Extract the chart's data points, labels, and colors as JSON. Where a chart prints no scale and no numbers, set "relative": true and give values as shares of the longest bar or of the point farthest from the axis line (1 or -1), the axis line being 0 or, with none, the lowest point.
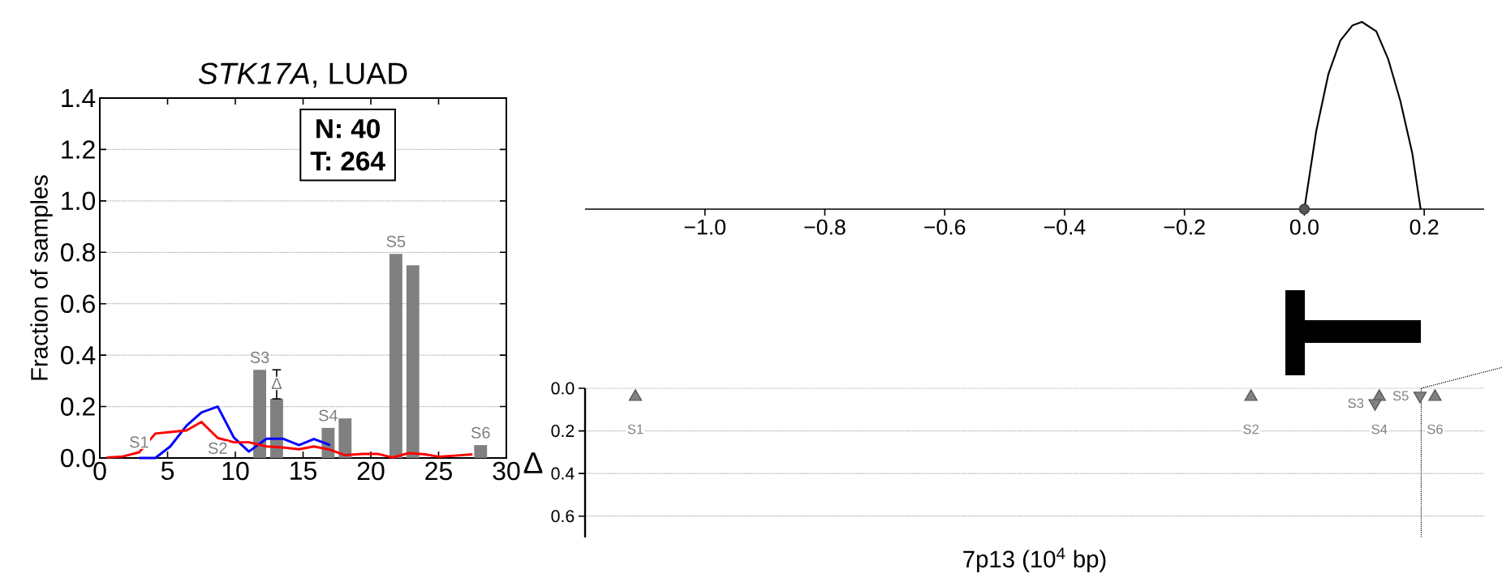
{
  "chart_data": [
    {
      "type": "bar",
      "title": "*STK17A*, LUAD",
      "ylabel": "Fraction of samples",
      "xlim": [
        0,
        30
      ],
      "xticks": [
        0,
        5,
        10,
        15,
        20,
        25,
        30
      ],
      "ylim": [
        0,
        1.4
      ],
      "yticks": [
        {
          "value": 0,
          "label": "0.0"
        },
        {
          "value": 0.2,
          "label": "0.2"
        },
        {
          "value": 0.4,
          "label": "0.4"
        },
        {
          "value": 0.6,
          "label": "0.6"
        },
        {
          "value": 0.8,
          "label": "0.8"
        },
        {
          "value": 1.0,
          "label": "1.0"
        },
        {
          "value": 1.2,
          "label": "1.2"
        },
        {
          "value": 1.4,
          "label": "1.4"
        }
      ],
      "grid": "y",
      "annotations": [
        {
          "text": "S1",
          "x": 2.9,
          "y": 0.022
        },
        {
          "text": "S2",
          "x": 8.7,
          "y": 0.078
        },
        {
          "text": "S3",
          "x": 11.8,
          "y": 0.343
        },
        {
          "text": "Δ",
          "x": 13.05,
          "y": 0.29
        },
        {
          "text": "S4",
          "x": 16.85,
          "y": 0.117
        },
        {
          "text": "S5",
          "x": 21.85,
          "y": 0.794
        },
        {
          "text": "S6",
          "x": 28.1,
          "y": 0.05
        },
        "N: 40",
        "T: 264"
      ],
      "series": [
        {
          "type": "bar",
          "color": "#808080",
          "x": [
            11.8,
            13.05,
            16.85,
            18.1,
            21.85,
            23.1,
            28.1
          ],
          "values": [
            0.343,
            0.23,
            0.117,
            0.154,
            0.794,
            0.75,
            0.05
          ],
          "errors": [
            null,
            [
              0.23,
              0.343
            ],
            null,
            null,
            null,
            null,
            null
          ]
        },
        {
          "type": "line",
          "color": "#0000ff",
          "x": [
            2.9,
            4.1,
            5.2,
            6.4,
            7.5,
            8.7,
            9.9,
            11,
            12.3,
            13.5,
            14.7,
            15.8,
            17
          ],
          "values": [
            0,
            0,
            0.045,
            0.126,
            0.177,
            0.2,
            0.079,
            0.025,
            0.075,
            0.075,
            0.05,
            0.074,
            0.05
          ]
        },
        {
          "type": "line",
          "color": "#ff0000",
          "x": [
            0.5,
            1.7,
            2.9,
            4.1,
            5.2,
            6.4,
            7.5,
            8.7,
            9.9,
            11,
            12.3,
            13.5,
            14.7,
            15.8,
            17,
            18.1,
            19.4,
            20.5,
            21.6,
            22.8,
            24,
            25,
            26.2,
            27.5
          ],
          "values": [
            0.002,
            0.006,
            0.022,
            0.095,
            0.101,
            0.107,
            0.14,
            0.078,
            0.061,
            0.061,
            0.045,
            0.041,
            0.034,
            0.045,
            0.032,
            0.011,
            0.016,
            0.016,
            0.002,
            0.019,
            0.014,
            0.005,
            0.009,
            0.014
          ]
        }
      ]
    },
    {
      "type": "line",
      "relative": true,
      "xlim": [
        -1.2,
        0.3
      ],
      "xticks": [
        {
          "value": -1.0,
          "label": "−1.0"
        },
        {
          "value": -0.8,
          "label": "−0.8"
        },
        {
          "value": -0.6,
          "label": "−0.6"
        },
        {
          "value": -0.4,
          "label": "−0.4"
        },
        {
          "value": -0.2,
          "label": "−0.2"
        },
        {
          "value": 0.0,
          "label": "0.0"
        },
        {
          "value": 0.2,
          "label": "0.2"
        }
      ],
      "series": [
        {
          "type": "line",
          "color": "#000000",
          "x": [
            0,
            0.02,
            0.04,
            0.06,
            0.08,
            0.096,
            0.12,
            0.14,
            0.16,
            0.18,
            0.194
          ],
          "values": [
            0,
            0.42,
            0.72,
            0.9,
            0.98,
            1,
            0.95,
            0.8,
            0.58,
            0.3,
            0
          ]
        },
        {
          "type": "scatter",
          "color": "#555555",
          "marker": "circle",
          "x": [
            0
          ],
          "values": [
            0
          ]
        }
      ]
    },
    {
      "type": "scatter",
      "xlabel": "7p13 (10$^{4}$ bp)",
      "ylabel": "Δ",
      "xlim": [
        -1.2,
        0.3
      ],
      "ylim": [
        0.7,
        0
      ],
      "yticks": [
        {
          "value": 0,
          "label": "0.0"
        },
        {
          "value": 0.2,
          "label": "0.2"
        },
        {
          "value": 0.4,
          "label": "0.4"
        },
        {
          "value": 0.6,
          "label": "0.6"
        }
      ],
      "tick_labels": "y",
      "grid": "y",
      "ref_lines": [
        {
          "axis": "x",
          "value": 0.195,
          "line_style": "dotted"
        }
      ],
      "annotations": [
        {
          "text": "S1",
          "x": -1.116,
          "y": 0.04
        },
        {
          "text": "S2",
          "x": -0.089,
          "y": 0.04
        },
        {
          "text": "S3",
          "x": 0.118,
          "y": 0.07
        },
        {
          "text": "S4",
          "x": 0.125,
          "y": 0.04
        },
        {
          "text": "S5",
          "x": 0.193,
          "y": 0.035
        },
        {
          "text": "S6",
          "x": 0.218,
          "y": 0.04
        }
      ],
      "series": [
        {
          "color": "#808080",
          "marker": "triangle",
          "x": [
            -1.116,
            -0.089,
            0.125,
            0.218
          ],
          "values": [
            0.04,
            0.04,
            0.04,
            0.04
          ]
        },
        {
          "color": "#808080",
          "marker": "triangle-down",
          "x": [
            0.118,
            0.193
          ],
          "values": [
            0.07,
            0.035
          ]
        }
      ]
    }
  ]
}
